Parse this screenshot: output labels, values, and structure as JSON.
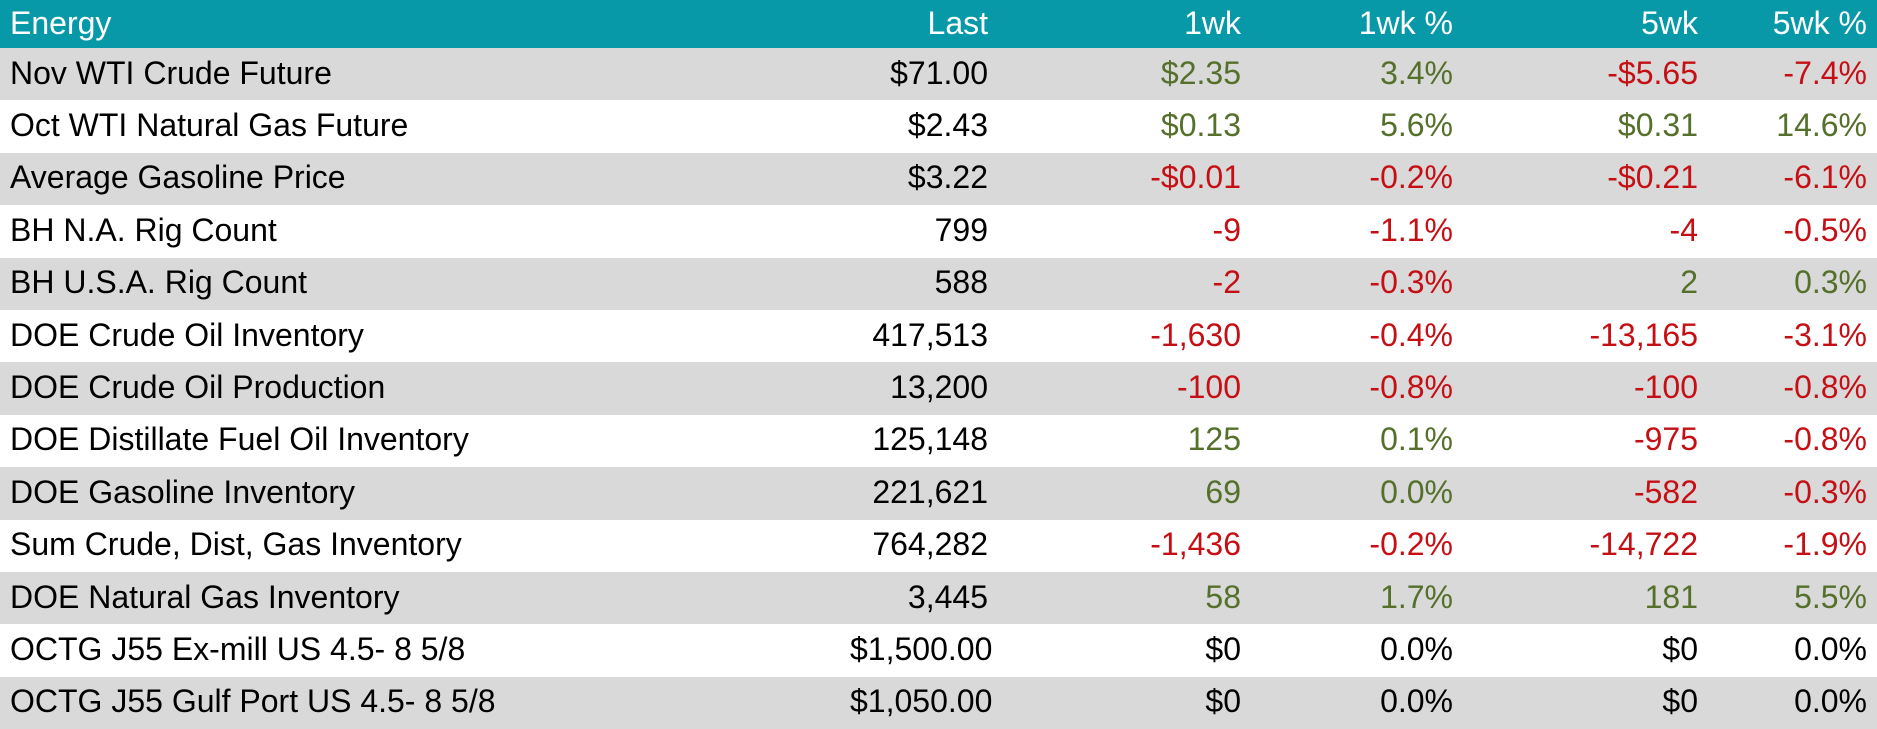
{
  "theme": {
    "header_bg": "#0899a9",
    "header_text": "#ffffff",
    "row_alt_bg": "#d9d9d9",
    "row_bg": "#ffffff",
    "pos_color": "#54702a",
    "neg_color": "#c50f14",
    "zero_color": "#000000",
    "text_color": "#000000"
  },
  "table": {
    "title_column_label": "Energy",
    "columns": [
      "Last",
      "1wk",
      "1wk %",
      "5wk",
      "5wk %"
    ],
    "rows": [
      {
        "name": "Nov WTI Crude Future",
        "last": "$71.00",
        "wk1": "$2.35",
        "wk1_sign": "pos",
        "wk1p": "3.4%",
        "wk1p_sign": "pos",
        "wk5": "-$5.65",
        "wk5_sign": "neg",
        "wk5p": "-7.4%",
        "wk5p_sign": "neg"
      },
      {
        "name": "Oct WTI Natural Gas Future",
        "last": "$2.43",
        "wk1": "$0.13",
        "wk1_sign": "pos",
        "wk1p": "5.6%",
        "wk1p_sign": "pos",
        "wk5": "$0.31",
        "wk5_sign": "pos",
        "wk5p": "14.6%",
        "wk5p_sign": "pos"
      },
      {
        "name": "Average Gasoline Price",
        "last": "$3.22",
        "wk1": "-$0.01",
        "wk1_sign": "neg",
        "wk1p": "-0.2%",
        "wk1p_sign": "neg",
        "wk5": "-$0.21",
        "wk5_sign": "neg",
        "wk5p": "-6.1%",
        "wk5p_sign": "neg"
      },
      {
        "name": "BH N.A. Rig Count",
        "last": "799",
        "wk1": "-9",
        "wk1_sign": "neg",
        "wk1p": "-1.1%",
        "wk1p_sign": "neg",
        "wk5": "-4",
        "wk5_sign": "neg",
        "wk5p": "-0.5%",
        "wk5p_sign": "neg"
      },
      {
        "name": "BH U.S.A. Rig Count",
        "last": "588",
        "wk1": "-2",
        "wk1_sign": "neg",
        "wk1p": "-0.3%",
        "wk1p_sign": "neg",
        "wk5": "2",
        "wk5_sign": "pos",
        "wk5p": "0.3%",
        "wk5p_sign": "pos"
      },
      {
        "name": "DOE Crude Oil Inventory",
        "last": "417,513",
        "wk1": "-1,630",
        "wk1_sign": "neg",
        "wk1p": "-0.4%",
        "wk1p_sign": "neg",
        "wk5": "-13,165",
        "wk5_sign": "neg",
        "wk5p": "-3.1%",
        "wk5p_sign": "neg"
      },
      {
        "name": "DOE Crude Oil Production",
        "last": "13,200",
        "wk1": "-100",
        "wk1_sign": "neg",
        "wk1p": "-0.8%",
        "wk1p_sign": "neg",
        "wk5": "-100",
        "wk5_sign": "neg",
        "wk5p": "-0.8%",
        "wk5p_sign": "neg"
      },
      {
        "name": "DOE Distillate Fuel Oil Inventory",
        "last": "125,148",
        "wk1": "125",
        "wk1_sign": "pos",
        "wk1p": "0.1%",
        "wk1p_sign": "pos",
        "wk5": "-975",
        "wk5_sign": "neg",
        "wk5p": "-0.8%",
        "wk5p_sign": "neg"
      },
      {
        "name": "DOE Gasoline Inventory",
        "last": "221,621",
        "wk1": "69",
        "wk1_sign": "pos",
        "wk1p": "0.0%",
        "wk1p_sign": "pos",
        "wk5": "-582",
        "wk5_sign": "neg",
        "wk5p": "-0.3%",
        "wk5p_sign": "neg"
      },
      {
        "name": "Sum Crude, Dist, Gas Inventory",
        "last": "764,282",
        "wk1": "-1,436",
        "wk1_sign": "neg",
        "wk1p": "-0.2%",
        "wk1p_sign": "neg",
        "wk5": "-14,722",
        "wk5_sign": "neg",
        "wk5p": "-1.9%",
        "wk5p_sign": "neg"
      },
      {
        "name": "DOE Natural Gas Inventory",
        "last": "3,445",
        "wk1": "58",
        "wk1_sign": "pos",
        "wk1p": "1.7%",
        "wk1p_sign": "pos",
        "wk5": "181",
        "wk5_sign": "pos",
        "wk5p": "5.5%",
        "wk5p_sign": "pos"
      },
      {
        "name": "OCTG J55 Ex-mill US 4.5- 8 5/8",
        "last": "$1,500.00",
        "wk1": "$0",
        "wk1_sign": "zero",
        "wk1p": "0.0%",
        "wk1p_sign": "zero",
        "wk5": "$0",
        "wk5_sign": "zero",
        "wk5p": "0.0%",
        "wk5p_sign": "zero"
      },
      {
        "name": "OCTG J55 Gulf Port US 4.5- 8 5/8",
        "last": "$1,050.00",
        "wk1": "$0",
        "wk1_sign": "zero",
        "wk1p": "0.0%",
        "wk1p_sign": "zero",
        "wk5": "$0",
        "wk5_sign": "zero",
        "wk5p": "0.0%",
        "wk5p_sign": "zero"
      }
    ]
  }
}
